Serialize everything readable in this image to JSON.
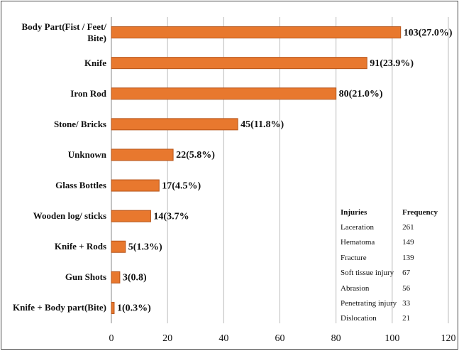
{
  "chart_data": {
    "type": "bar",
    "orientation": "horizontal",
    "categories": [
      "Body Part(Fist / Feet/ Bite)",
      "Knife",
      "Iron Rod",
      "Stone/ Bricks",
      "Unknown",
      "Glass Bottles",
      "Wooden log/ sticks",
      "Knife + Rods",
      "Gun Shots",
      "Knife + Body part(Bite)"
    ],
    "values": [
      103,
      91,
      80,
      45,
      22,
      17,
      14,
      5,
      3,
      1
    ],
    "value_labels": [
      "103(27.0%)",
      "91(23.9%)",
      "80(21.0%)",
      "45(11.8%)",
      "22(5.8%)",
      "17(4.5%)",
      "14(3.7%",
      "5(1.3%)",
      "3(0.8)",
      "1(0.3%)"
    ],
    "color": "#e8782e",
    "xlim": [
      0,
      120
    ],
    "xticks": [
      0,
      20,
      40,
      60,
      80,
      100,
      120
    ],
    "grid": true
  },
  "table": {
    "header": [
      "Injuries",
      "Frequency"
    ],
    "rows": [
      [
        "Laceration",
        "261"
      ],
      [
        "Hematoma",
        "149"
      ],
      [
        "Fracture",
        "139"
      ],
      [
        "Soft tissue injury",
        "67"
      ],
      [
        "Abrasion",
        "56"
      ],
      [
        "Penetrating injury",
        "33"
      ],
      [
        "Dislocation",
        "21"
      ]
    ]
  }
}
